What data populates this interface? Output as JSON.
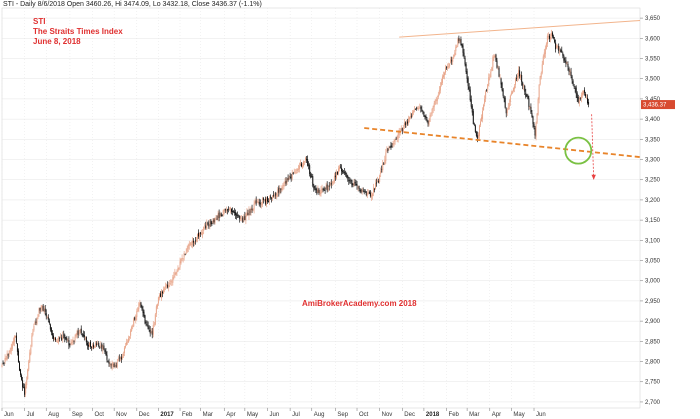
{
  "header": {
    "info": "STI - Daily 8/6/2018 Open 3460.26, Hi 3474.09, Lo 3432.18, Close 3436.37 (-1.1%)"
  },
  "titles": {
    "symbol": "STI",
    "name": "The Straits Times Index",
    "date": "June 8, 2018"
  },
  "watermark": "AmiBrokerAcademy.com  2018",
  "colors": {
    "up": "#e8a58a",
    "down": "#111111",
    "resistance": "#f2b48c",
    "support": "#e8842a",
    "circle": "#7ac143",
    "arrow": "#e84040",
    "last_price_bg": "#d84a30",
    "grid": "#e4e4e4"
  },
  "chart_data": {
    "type": "candlestick",
    "symbol": "STI",
    "last_close": "3,436.37",
    "ylim": [
      2685,
      3675
    ],
    "xlim": [
      0,
      620
    ],
    "y_ticks": [
      2700,
      2750,
      2800,
      2850,
      2900,
      2950,
      3000,
      3050,
      3100,
      3150,
      3200,
      3250,
      3300,
      3350,
      3400,
      3450,
      3500,
      3550,
      3600,
      3650
    ],
    "x_ticks": [
      {
        "i": 0,
        "label": "Jun",
        "bold": false
      },
      {
        "i": 22,
        "label": "Jul",
        "bold": false
      },
      {
        "i": 43,
        "label": "Aug",
        "bold": false
      },
      {
        "i": 66,
        "label": "Sep",
        "bold": false
      },
      {
        "i": 88,
        "label": "Oct",
        "bold": false
      },
      {
        "i": 109,
        "label": "Nov",
        "bold": false
      },
      {
        "i": 131,
        "label": "Dec",
        "bold": false
      },
      {
        "i": 152,
        "label": "2017",
        "bold": true
      },
      {
        "i": 173,
        "label": "Feb",
        "bold": false
      },
      {
        "i": 193,
        "label": "Mar",
        "bold": false
      },
      {
        "i": 216,
        "label": "Apr",
        "bold": false
      },
      {
        "i": 236,
        "label": "May",
        "bold": false
      },
      {
        "i": 258,
        "label": "Jun",
        "bold": false
      },
      {
        "i": 280,
        "label": "Jul",
        "bold": false
      },
      {
        "i": 301,
        "label": "Aug",
        "bold": false
      },
      {
        "i": 324,
        "label": "Sep",
        "bold": false
      },
      {
        "i": 345,
        "label": "Oct",
        "bold": false
      },
      {
        "i": 367,
        "label": "Nov",
        "bold": false
      },
      {
        "i": 389,
        "label": "Dec",
        "bold": false
      },
      {
        "i": 410,
        "label": "2018",
        "bold": true
      },
      {
        "i": 432,
        "label": "Feb",
        "bold": false
      },
      {
        "i": 452,
        "label": "Mar",
        "bold": false
      },
      {
        "i": 474,
        "label": "Apr",
        "bold": false
      },
      {
        "i": 495,
        "label": "May",
        "bold": false
      },
      {
        "i": 517,
        "label": "Jun",
        "bold": false
      }
    ],
    "anchors": [
      [
        0,
        2790
      ],
      [
        8,
        2830
      ],
      [
        13,
        2870
      ],
      [
        18,
        2760
      ],
      [
        22,
        2720
      ],
      [
        30,
        2880
      ],
      [
        38,
        2940
      ],
      [
        44,
        2910
      ],
      [
        50,
        2850
      ],
      [
        60,
        2860
      ],
      [
        66,
        2840
      ],
      [
        76,
        2880
      ],
      [
        84,
        2840
      ],
      [
        96,
        2840
      ],
      [
        104,
        2800
      ],
      [
        110,
        2790
      ],
      [
        118,
        2820
      ],
      [
        128,
        2900
      ],
      [
        134,
        2950
      ],
      [
        140,
        2890
      ],
      [
        146,
        2870
      ],
      [
        152,
        2960
      ],
      [
        165,
        3000
      ],
      [
        180,
        3080
      ],
      [
        196,
        3130
      ],
      [
        210,
        3160
      ],
      [
        222,
        3180
      ],
      [
        234,
        3150
      ],
      [
        246,
        3190
      ],
      [
        262,
        3200
      ],
      [
        274,
        3240
      ],
      [
        288,
        3280
      ],
      [
        296,
        3300
      ],
      [
        304,
        3220
      ],
      [
        318,
        3230
      ],
      [
        328,
        3280
      ],
      [
        336,
        3250
      ],
      [
        342,
        3240
      ],
      [
        350,
        3220
      ],
      [
        358,
        3210
      ],
      [
        366,
        3250
      ],
      [
        374,
        3320
      ],
      [
        382,
        3350
      ],
      [
        390,
        3380
      ],
      [
        398,
        3410
      ],
      [
        406,
        3430
      ],
      [
        414,
        3390
      ],
      [
        422,
        3450
      ],
      [
        430,
        3520
      ],
      [
        438,
        3550
      ],
      [
        444,
        3600
      ],
      [
        448,
        3570
      ],
      [
        454,
        3470
      ],
      [
        458,
        3390
      ],
      [
        462,
        3350
      ],
      [
        468,
        3440
      ],
      [
        474,
        3510
      ],
      [
        478,
        3560
      ],
      [
        484,
        3500
      ],
      [
        490,
        3420
      ],
      [
        496,
        3470
      ],
      [
        502,
        3520
      ],
      [
        508,
        3470
      ],
      [
        514,
        3420
      ],
      [
        518,
        3360
      ],
      [
        522,
        3480
      ],
      [
        526,
        3560
      ],
      [
        530,
        3600
      ],
      [
        534,
        3610
      ],
      [
        538,
        3580
      ],
      [
        544,
        3560
      ],
      [
        550,
        3530
      ],
      [
        556,
        3480
      ],
      [
        560,
        3440
      ],
      [
        564,
        3470
      ],
      [
        570,
        3436
      ]
    ],
    "resistance_line": {
      "x": [
        386,
        620
      ],
      "y": [
        3603,
        3644
      ]
    },
    "support_line": {
      "x": [
        352,
        620
      ],
      "y": [
        3378,
        3306
      ]
    },
    "highlight_circle": {
      "x": 560,
      "y": 3322
    },
    "arrow": {
      "x": [
        573,
        575
      ],
      "y": [
        3412,
        3250
      ]
    }
  }
}
